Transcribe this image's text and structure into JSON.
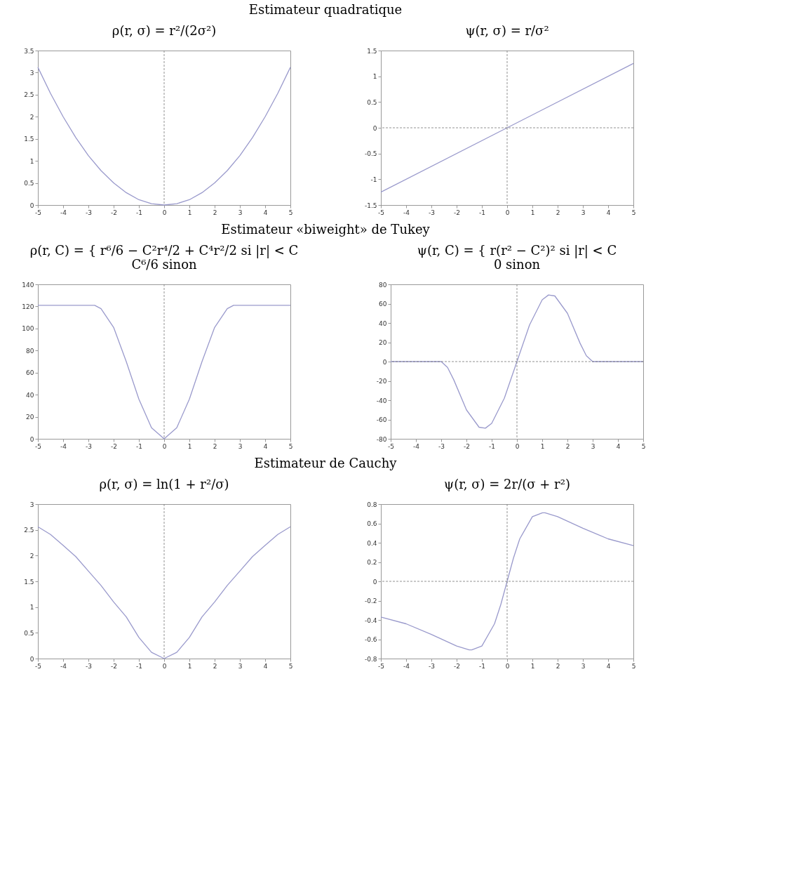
{
  "chart_data": [
    {
      "type": "line",
      "title": "ρ(r, σ) = r²/(2σ²)",
      "annotations": [
        "Estimateur quadratique"
      ],
      "x": [
        -5,
        -4.5,
        -4,
        -3.5,
        -3,
        -2.5,
        -2,
        -1.5,
        -1,
        -0.5,
        0,
        0.5,
        1,
        1.5,
        2,
        2.5,
        3,
        3.5,
        4,
        4.5,
        5
      ],
      "series": [
        {
          "color": "#9a9acc",
          "values": [
            3.12,
            2.53,
            2,
            1.53,
            1.12,
            0.78,
            0.5,
            0.28,
            0.12,
            0.03,
            0,
            0.03,
            0.12,
            0.28,
            0.5,
            0.78,
            1.12,
            1.53,
            2,
            2.53,
            3.12
          ]
        }
      ],
      "xlim": [
        -5,
        5
      ],
      "xticks": [
        -5,
        -4,
        -3,
        -2,
        -1,
        0,
        1,
        2,
        3,
        4,
        5
      ],
      "ylim": [
        0,
        3.5
      ],
      "yticks": [
        0,
        0.5,
        1,
        1.5,
        2,
        2.5,
        3,
        3.5
      ],
      "ref_lines": [
        {
          "axis": "x",
          "value": 0,
          "line_style": "dashed"
        }
      ]
    },
    {
      "type": "line",
      "title": "ψ(r, σ) = r/σ²",
      "x": [
        -5,
        0,
        5
      ],
      "series": [
        {
          "color": "#9a9acc",
          "values": [
            -1.25,
            0,
            1.25
          ]
        }
      ],
      "xlim": [
        -5,
        5
      ],
      "xticks": [
        -5,
        -4,
        -3,
        -2,
        -1,
        0,
        1,
        2,
        3,
        4,
        5
      ],
      "ylim": [
        -1.5,
        1.5
      ],
      "yticks": [
        -1.5,
        -1,
        -0.5,
        0,
        0.5,
        1,
        1.5
      ],
      "ref_lines": [
        {
          "axis": "x",
          "value": 0,
          "line_style": "dashed"
        },
        {
          "axis": "y",
          "value": 0,
          "line_style": "dashed"
        }
      ]
    },
    {
      "type": "line",
      "title": "ρ(r, C) = { r⁶/6 − C²r⁴/2 + C⁴r²/2   si  |r| < C\n                 C⁶/6                                    sinon",
      "annotations": [
        "Estimateur «biweight» de Tukey"
      ],
      "x": [
        -5,
        -4,
        -3,
        -2.75,
        -2.5,
        -2,
        -1.5,
        -1,
        -0.5,
        0,
        0.5,
        1,
        1.5,
        2,
        2.5,
        2.75,
        3,
        4,
        5
      ],
      "series": [
        {
          "color": "#9a9acc",
          "values": [
            121,
            121,
            121,
            121,
            118,
            101,
            70,
            36,
            10,
            0,
            10,
            36,
            70,
            101,
            118,
            121,
            121,
            121,
            121
          ]
        }
      ],
      "xlim": [
        -5,
        5
      ],
      "xticks": [
        -5,
        -4,
        -3,
        -2,
        -1,
        0,
        1,
        2,
        3,
        4,
        5
      ],
      "ylim": [
        0,
        140
      ],
      "yticks": [
        0,
        20,
        40,
        60,
        80,
        100,
        120,
        140
      ],
      "ref_lines": [
        {
          "axis": "x",
          "value": 0,
          "line_style": "dashed"
        }
      ]
    },
    {
      "type": "line",
      "title": "ψ(r, C) = { r(r² − C²)²   si  |r| < C\n                 0                     sinon",
      "x": [
        -5,
        -4,
        -3,
        -2.75,
        -2.5,
        -2,
        -1.5,
        -1.25,
        -1,
        -0.5,
        0,
        0.5,
        1,
        1.25,
        1.5,
        2,
        2.5,
        2.75,
        3,
        4,
        5
      ],
      "series": [
        {
          "color": "#9a9acc",
          "values": [
            0,
            0,
            0,
            -6,
            -19,
            -50,
            -68,
            -69,
            -64,
            -38,
            0,
            38,
            64,
            69,
            68,
            50,
            19,
            6,
            0,
            0,
            0
          ]
        }
      ],
      "xlim": [
        -5,
        5
      ],
      "xticks": [
        -5,
        -4,
        -3,
        -2,
        -1,
        0,
        1,
        2,
        3,
        4,
        5
      ],
      "ylim": [
        -80,
        80
      ],
      "yticks": [
        -80,
        -60,
        -40,
        -20,
        0,
        20,
        40,
        60,
        80
      ],
      "ref_lines": [
        {
          "axis": "x",
          "value": 0,
          "line_style": "dashed"
        },
        {
          "axis": "y",
          "value": 0,
          "line_style": "dashed"
        }
      ]
    },
    {
      "type": "line",
      "title": "ρ(r, σ) = ln(1 + r²/σ)",
      "annotations": [
        "Estimateur de Cauchy"
      ],
      "x": [
        -5,
        -4.5,
        -4,
        -3.5,
        -3,
        -2.5,
        -2,
        -1.5,
        -1,
        -0.5,
        0,
        0.5,
        1,
        1.5,
        2,
        2.5,
        3,
        3.5,
        4,
        4.5,
        5
      ],
      "series": [
        {
          "color": "#9a9acc",
          "values": [
            2.56,
            2.41,
            2.2,
            1.98,
            1.7,
            1.42,
            1.1,
            0.81,
            0.41,
            0.12,
            0,
            0.12,
            0.41,
            0.81,
            1.1,
            1.42,
            1.7,
            1.98,
            2.2,
            2.41,
            2.56
          ]
        }
      ],
      "xlim": [
        -5,
        5
      ],
      "xticks": [
        -5,
        -4,
        -3,
        -2,
        -1,
        0,
        1,
        2,
        3,
        4,
        5
      ],
      "ylim": [
        0,
        3
      ],
      "yticks": [
        0,
        0.5,
        1,
        1.5,
        2,
        2.5,
        3
      ],
      "ref_lines": [
        {
          "axis": "x",
          "value": 0,
          "line_style": "dashed"
        }
      ]
    },
    {
      "type": "line",
      "title": "ψ(r, σ) = 2r/(σ + r²)",
      "x": [
        -5,
        -4,
        -3,
        -2,
        -1.5,
        -1.4,
        -1,
        -0.5,
        -0.25,
        0,
        0.25,
        0.5,
        1,
        1.4,
        1.5,
        2,
        3,
        4,
        5
      ],
      "series": [
        {
          "color": "#9a9acc",
          "values": [
            -0.37,
            -0.44,
            -0.55,
            -0.67,
            -0.71,
            -0.71,
            -0.67,
            -0.44,
            -0.24,
            0,
            0.24,
            0.44,
            0.67,
            0.71,
            0.71,
            0.67,
            0.55,
            0.44,
            0.37
          ]
        }
      ],
      "xlim": [
        -5,
        5
      ],
      "xticks": [
        -5,
        -4,
        -3,
        -2,
        -1,
        0,
        1,
        2,
        3,
        4,
        5
      ],
      "ylim": [
        -0.8,
        0.8
      ],
      "yticks": [
        -0.8,
        -0.6,
        -0.4,
        -0.2,
        0,
        0.2,
        0.4,
        0.6,
        0.8
      ],
      "ref_lines": [
        {
          "axis": "x",
          "value": 0,
          "line_style": "dashed"
        },
        {
          "axis": "y",
          "value": 0,
          "line_style": "dashed"
        }
      ]
    }
  ]
}
